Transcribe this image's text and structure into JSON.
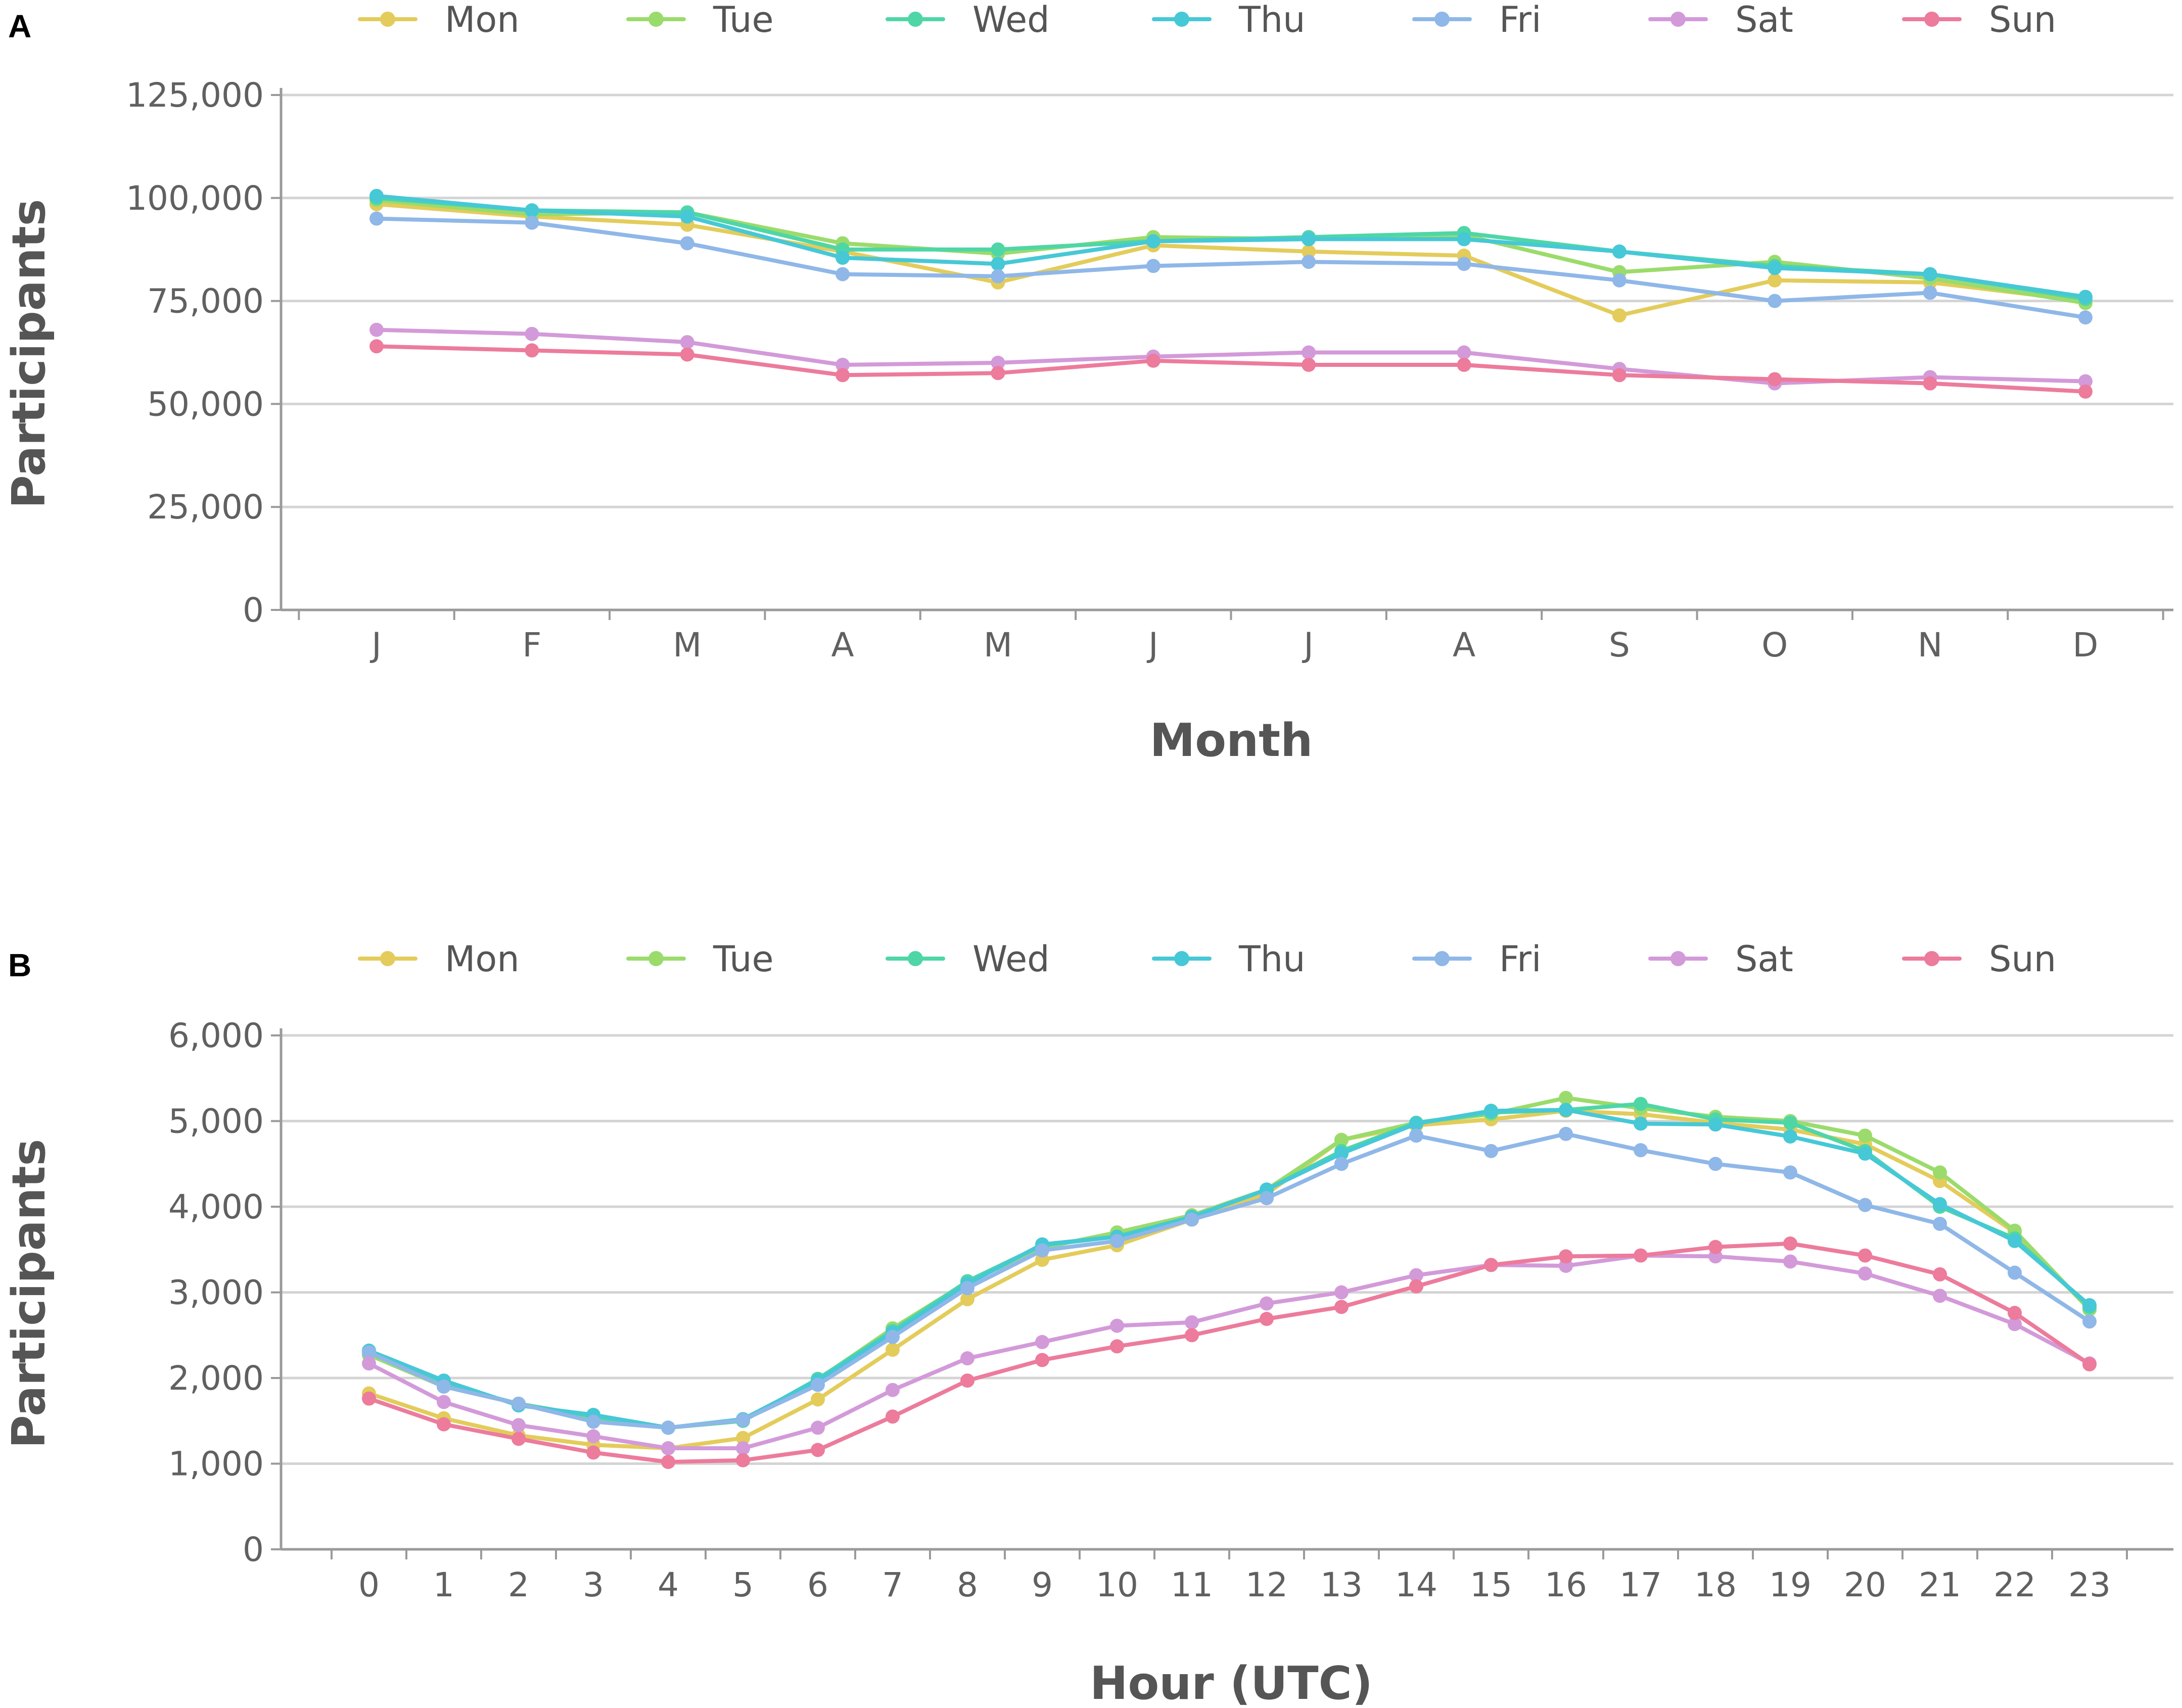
{
  "chart_data": [
    {
      "panel": "A",
      "type": "line",
      "title": "",
      "xlabel": "Month",
      "ylabel": "Participants",
      "ylim": [
        0,
        125000
      ],
      "yticks": [
        0,
        25000,
        50000,
        75000,
        100000,
        125000
      ],
      "ytick_labels": [
        "0",
        "25,000",
        "50,000",
        "75,000",
        "100,000",
        "125,000"
      ],
      "grid": true,
      "legend_position": "top",
      "categories": [
        "J",
        "F",
        "M",
        "A",
        "M",
        "J",
        "J",
        "A",
        "S",
        "O",
        "N",
        "D"
      ],
      "series": [
        {
          "name": "Mon",
          "color": "#e3cc5b",
          "values": [
            98500,
            95500,
            93500,
            87000,
            79500,
            88500,
            87000,
            86000,
            71500,
            80000,
            79500,
            75000
          ]
        },
        {
          "name": "Tue",
          "color": "#9bdb6b",
          "values": [
            99500,
            96000,
            96500,
            89000,
            86500,
            90500,
            90000,
            91000,
            82000,
            84500,
            80500,
            74500
          ]
        },
        {
          "name": "Wed",
          "color": "#4fd6a6",
          "values": [
            100000,
            97000,
            96500,
            87500,
            87500,
            89500,
            90500,
            91500,
            87000,
            83500,
            81500,
            75500
          ]
        },
        {
          "name": "Thu",
          "color": "#46c8d6",
          "values": [
            100500,
            97000,
            95500,
            85500,
            84000,
            89500,
            90000,
            90000,
            87000,
            83000,
            81500,
            76000
          ]
        },
        {
          "name": "Fri",
          "color": "#8fb7e8",
          "values": [
            95000,
            94000,
            89000,
            81500,
            81000,
            83500,
            84500,
            84000,
            80000,
            75000,
            77000,
            71000
          ]
        },
        {
          "name": "Sat",
          "color": "#d39ad9",
          "values": [
            68000,
            67000,
            65000,
            59500,
            60000,
            61500,
            62500,
            62500,
            58500,
            55000,
            56500,
            55500
          ]
        },
        {
          "name": "Sun",
          "color": "#ec7b9c",
          "values": [
            64000,
            63000,
            62000,
            57000,
            57500,
            60500,
            59500,
            59500,
            57000,
            56000,
            55000,
            53000
          ]
        }
      ]
    },
    {
      "panel": "B",
      "type": "line",
      "title": "",
      "xlabel": "Hour (UTC)",
      "ylabel": "Participants",
      "ylim": [
        0,
        6000
      ],
      "yticks": [
        0,
        1000,
        2000,
        3000,
        4000,
        5000,
        6000
      ],
      "ytick_labels": [
        "0",
        "1,000",
        "2,000",
        "3,000",
        "4,000",
        "5,000",
        "6,000"
      ],
      "grid": true,
      "legend_position": "top",
      "categories": [
        "0",
        "1",
        "2",
        "3",
        "4",
        "5",
        "6",
        "7",
        "8",
        "9",
        "10",
        "11",
        "12",
        "13",
        "14",
        "15",
        "16",
        "17",
        "18",
        "19",
        "20",
        "21",
        "22",
        "23"
      ],
      "series": [
        {
          "name": "Mon",
          "color": "#e3cc5b",
          "values": [
            1820,
            1530,
            1330,
            1220,
            1180,
            1300,
            1750,
            2330,
            2920,
            3380,
            3550,
            3850,
            4150,
            4780,
            4950,
            5020,
            5120,
            5080,
            4980,
            4900,
            4730,
            4300,
            3700,
            2800
          ]
        },
        {
          "name": "Tue",
          "color": "#9bdb6b",
          "values": [
            2270,
            1900,
            1700,
            1520,
            1420,
            1500,
            1980,
            2580,
            3120,
            3520,
            3700,
            3900,
            4200,
            4780,
            4980,
            5080,
            5270,
            5150,
            5050,
            5000,
            4830,
            4400,
            3720,
            2800
          ]
        },
        {
          "name": "Wed",
          "color": "#4fd6a6",
          "values": [
            2300,
            1920,
            1700,
            1550,
            1420,
            1500,
            1990,
            2550,
            3130,
            3550,
            3650,
            3880,
            4200,
            4650,
            4980,
            5100,
            5130,
            5200,
            5020,
            4980,
            4650,
            4000,
            3630,
            2830
          ]
        },
        {
          "name": "Thu",
          "color": "#46c8d6",
          "values": [
            2320,
            1970,
            1680,
            1570,
            1420,
            1520,
            1970,
            2530,
            3100,
            3560,
            3650,
            3880,
            4200,
            4620,
            4970,
            5120,
            5130,
            4970,
            4960,
            4820,
            4620,
            4030,
            3600,
            2850
          ]
        },
        {
          "name": "Fri",
          "color": "#8fb7e8",
          "values": [
            2300,
            1900,
            1700,
            1490,
            1420,
            1510,
            1920,
            2480,
            3050,
            3490,
            3600,
            3850,
            4100,
            4500,
            4830,
            4650,
            4850,
            4660,
            4500,
            4400,
            4020,
            3800,
            3230,
            2660
          ]
        },
        {
          "name": "Sat",
          "color": "#d39ad9",
          "values": [
            2170,
            1720,
            1450,
            1320,
            1180,
            1180,
            1420,
            1860,
            2230,
            2420,
            2610,
            2650,
            2870,
            3000,
            3200,
            3320,
            3310,
            3430,
            3420,
            3360,
            3220,
            2960,
            2630,
            2170
          ]
        },
        {
          "name": "Sun",
          "color": "#ec7b9c",
          "values": [
            1760,
            1460,
            1290,
            1130,
            1020,
            1040,
            1160,
            1550,
            1970,
            2210,
            2370,
            2500,
            2690,
            2830,
            3070,
            3320,
            3420,
            3430,
            3530,
            3570,
            3430,
            3210,
            2760,
            2160
          ]
        }
      ]
    }
  ]
}
